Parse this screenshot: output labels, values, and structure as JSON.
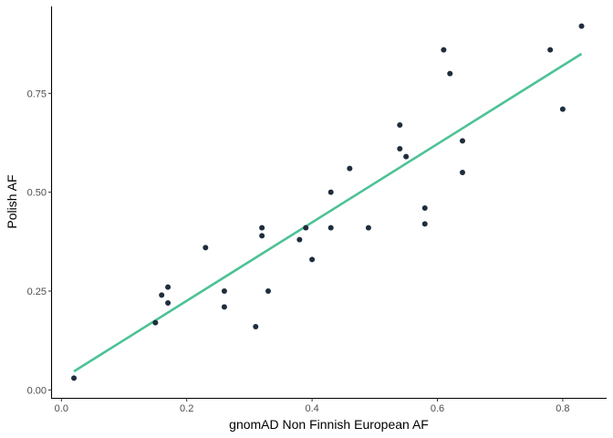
{
  "chart_data": {
    "type": "scatter",
    "xlabel": "gnomAD Non Finnish European AF",
    "ylabel": "Polish AF",
    "xlim": [
      -0.015,
      0.87
    ],
    "ylim": [
      -0.02,
      0.97
    ],
    "x_ticks": [
      0.0,
      0.2,
      0.4,
      0.6,
      0.8
    ],
    "x_tick_labels": [
      "0.0",
      "0.2",
      "0.4",
      "0.6",
      "0.8"
    ],
    "y_ticks": [
      0.0,
      0.25,
      0.5,
      0.75
    ],
    "y_tick_labels": [
      "0.00",
      "0.25",
      "0.50",
      "0.75"
    ],
    "grid": false,
    "point_color": "#1f2d3d",
    "line_color": "#4cc294",
    "points": [
      {
        "x": 0.02,
        "y": 0.03
      },
      {
        "x": 0.15,
        "y": 0.17
      },
      {
        "x": 0.16,
        "y": 0.24
      },
      {
        "x": 0.17,
        "y": 0.26
      },
      {
        "x": 0.17,
        "y": 0.22
      },
      {
        "x": 0.23,
        "y": 0.36
      },
      {
        "x": 0.26,
        "y": 0.25
      },
      {
        "x": 0.26,
        "y": 0.21
      },
      {
        "x": 0.31,
        "y": 0.16
      },
      {
        "x": 0.32,
        "y": 0.41
      },
      {
        "x": 0.32,
        "y": 0.39
      },
      {
        "x": 0.33,
        "y": 0.25
      },
      {
        "x": 0.38,
        "y": 0.38
      },
      {
        "x": 0.39,
        "y": 0.41
      },
      {
        "x": 0.4,
        "y": 0.33
      },
      {
        "x": 0.43,
        "y": 0.5
      },
      {
        "x": 0.43,
        "y": 0.41
      },
      {
        "x": 0.46,
        "y": 0.56
      },
      {
        "x": 0.49,
        "y": 0.41
      },
      {
        "x": 0.54,
        "y": 0.67
      },
      {
        "x": 0.54,
        "y": 0.61
      },
      {
        "x": 0.55,
        "y": 0.59
      },
      {
        "x": 0.58,
        "y": 0.46
      },
      {
        "x": 0.58,
        "y": 0.42
      },
      {
        "x": 0.61,
        "y": 0.86
      },
      {
        "x": 0.62,
        "y": 0.8
      },
      {
        "x": 0.64,
        "y": 0.63
      },
      {
        "x": 0.64,
        "y": 0.55
      },
      {
        "x": 0.78,
        "y": 0.86
      },
      {
        "x": 0.8,
        "y": 0.71
      },
      {
        "x": 0.83,
        "y": 0.92
      }
    ],
    "fit_line": {
      "x": [
        0.02,
        0.83
      ],
      "y": [
        0.047,
        0.85
      ]
    }
  }
}
